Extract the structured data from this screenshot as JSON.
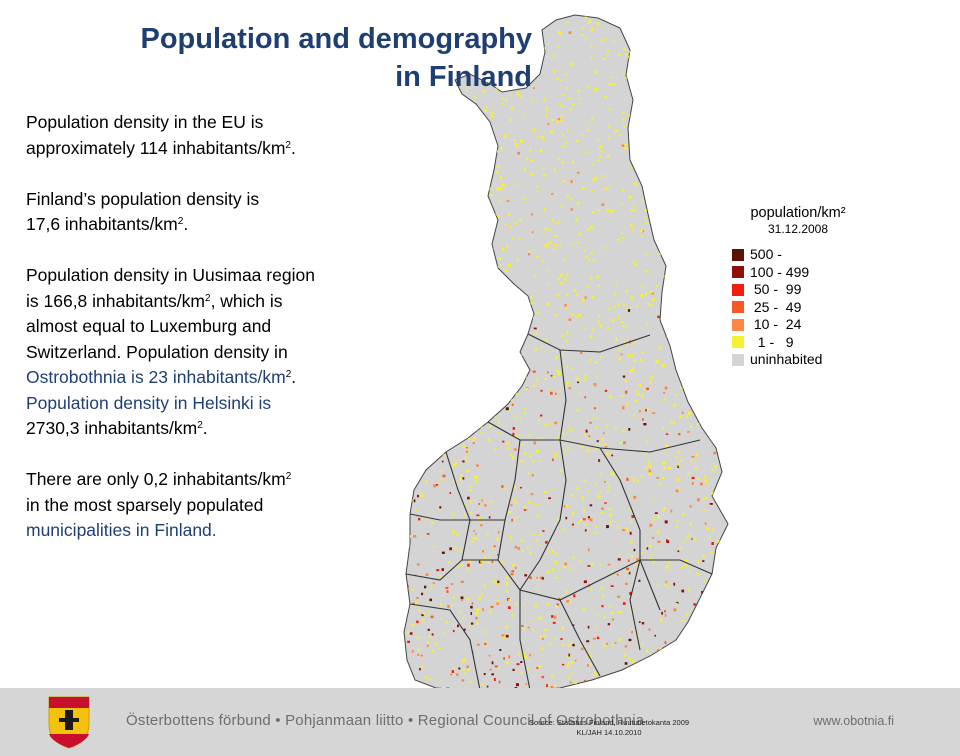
{
  "title": {
    "line1": "Population and demography",
    "line2": "in Finland"
  },
  "paragraphs": {
    "p1_line1": "Population density in the EU is",
    "p1_line2": "approximately 114 inhabitants/km",
    "p1_sup": "2",
    "p1_end": ".",
    "p2_line1": "Finland’s population density is",
    "p2_line2": "17,6 inhabitants/km",
    "p2_sup": "2",
    "p2_end": ".",
    "p3_line1": "Population density in Uusimaa region",
    "p3_line2a": "is 166,8 inhabitants/km",
    "p3_sup1": "2",
    "p3_line2b": ", which is",
    "p3_line3": "almost equal to Luxemburg and",
    "p3_line4": "Switzerland. Population density in",
    "p3_line5": "Ostrobothnia is 23 inhabitants/km",
    "p3_sup2": "2",
    "p3_line5b": ".",
    "p3_line6": "Population density in Helsinki is",
    "p3_line7": "2730,3 inhabitants/km",
    "p3_sup3": "2",
    "p3_line7b": ".",
    "p4_line1": "There are only 0,2 inhabitants/km",
    "p4_sup": "2",
    "p4_line2": "in the most sparsely populated",
    "p4_line3": "municipalities in Finland."
  },
  "legend": {
    "title": "population/km²",
    "date": "31.12.2008",
    "items": [
      {
        "label": "500 -",
        "color": "#5a1406"
      },
      {
        "label": "100 - 499",
        "color": "#8e0f08"
      },
      {
        "label": " 50 -  99",
        "color": "#ee1d0c"
      },
      {
        "label": " 25 -  49",
        "color": "#f85a23"
      },
      {
        "label": " 10 -  24",
        "color": "#fb8848"
      },
      {
        "label": "  1 -   9",
        "color": "#f6f232"
      },
      {
        "label": "uninhabited",
        "color": "#d4d4d4"
      }
    ]
  },
  "footer": {
    "organization": "Österbottens förbund • Pohjanmaan liitto • Regional Council of Ostrobothnia",
    "url": "www.obotnia.fi",
    "source_line1": "Source: Statistics Finland, Ruututietokanta 2009",
    "source_line2": "KL/JAH 14.10.2010"
  },
  "colors": {
    "title": "#1f3f73",
    "land": "#d4d4d4",
    "border": "#333333",
    "footer_bg": "#d6d6d6"
  }
}
